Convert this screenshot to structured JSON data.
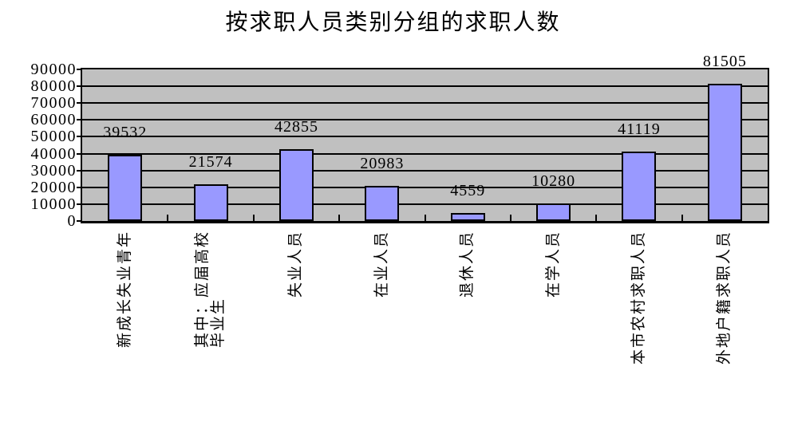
{
  "page": {
    "background": "#FFFFFF"
  },
  "chart_data": {
    "type": "bar",
    "title": "按求职人员类别分组的求职人数",
    "categories": [
      "新成长失业青年",
      "其中：应届高校毕业生",
      "失业人员",
      "在业人员",
      "退休人员",
      "在学人员",
      "本市农村求职人员",
      "外地户籍求职人员"
    ],
    "category_display_lines": [
      [
        "新成长失业青年"
      ],
      [
        "其中：应届高校",
        "毕业生"
      ],
      [
        "失业人员"
      ],
      [
        "在业人员"
      ],
      [
        "退休人员"
      ],
      [
        "在学人员"
      ],
      [
        "本市农村求职人员"
      ],
      [
        "外地户籍求职人员"
      ]
    ],
    "values": [
      39532,
      21574,
      42855,
      20983,
      4559,
      10280,
      41119,
      81505
    ],
    "data_labels": [
      "39532",
      "21574",
      "42855",
      "20983",
      "4559",
      "10280",
      "41119",
      "81505"
    ],
    "xlabel": "",
    "ylabel": "",
    "ylim": [
      0,
      90000
    ],
    "ytick_interval": 10000,
    "ytick_labels": [
      "0",
      "10000",
      "20000",
      "30000",
      "40000",
      "50000",
      "60000",
      "70000",
      "80000",
      "90000"
    ],
    "grid": "horizontal-major",
    "legend_position": "none",
    "bar_label_position": "outside-end",
    "category_label_rotation_deg": 90
  },
  "colors": {
    "bar_fill": "#9999FF",
    "bar_border": "#000000",
    "plot_background": "#C0C0C0",
    "gridline": "#000000",
    "axis": "#000000",
    "text": "#000000",
    "page_background": "#FFFFFF"
  }
}
